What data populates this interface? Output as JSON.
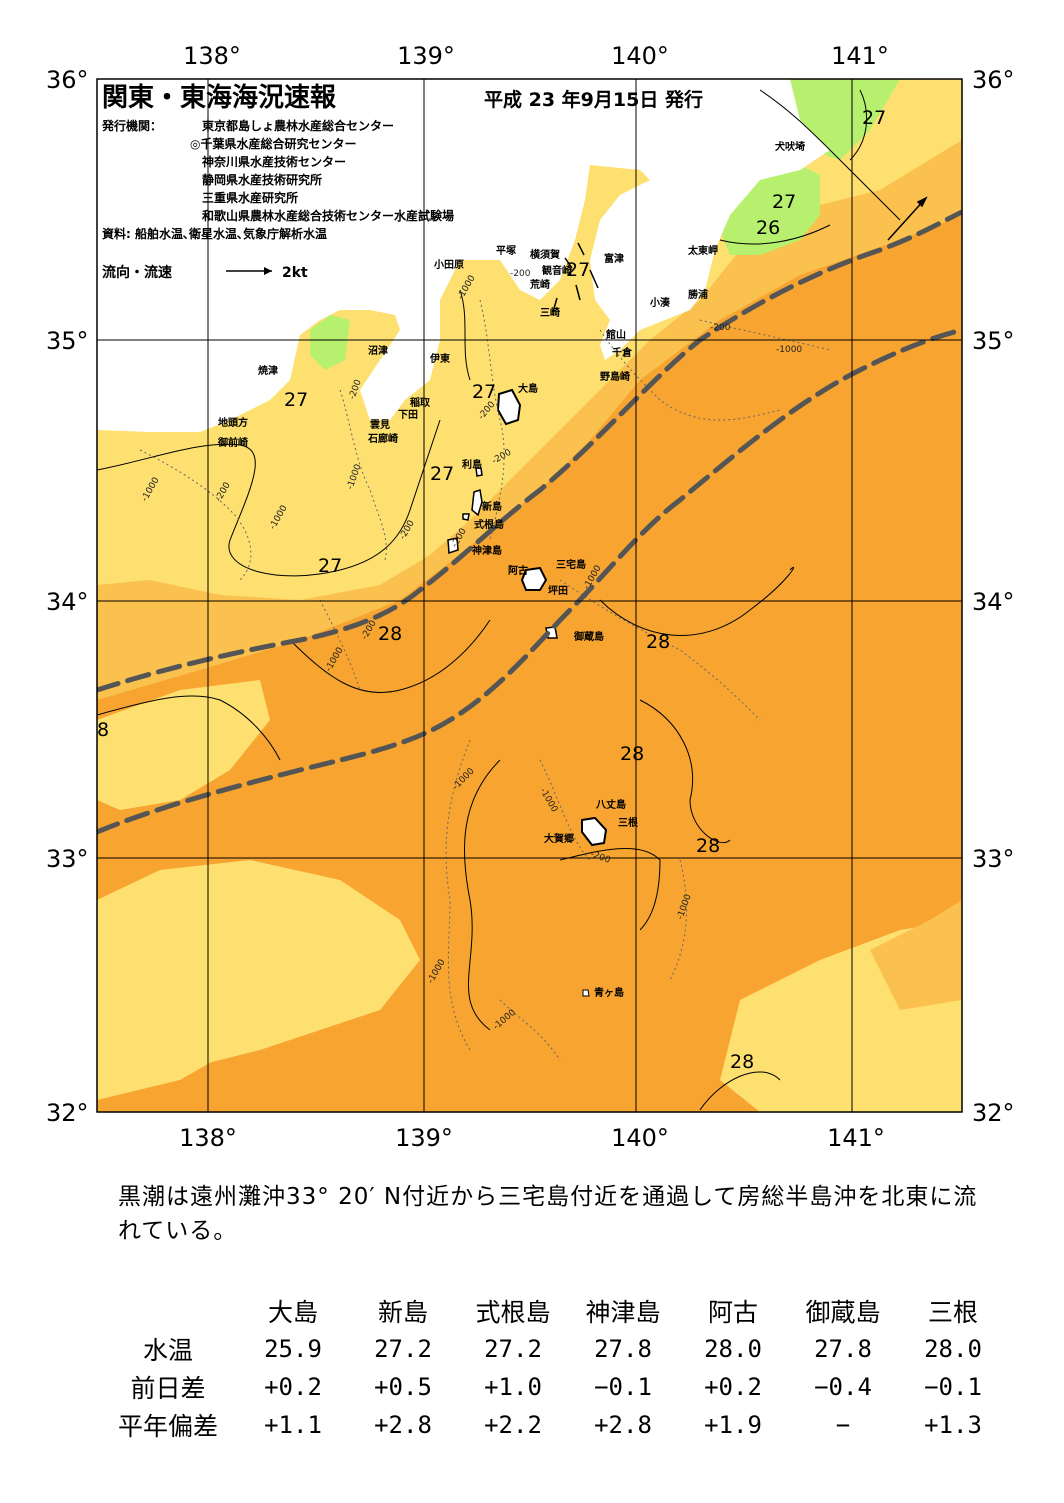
{
  "map": {
    "title": "関東・東海海況速報",
    "issue_date": "平成 23 年9月15日 発行",
    "agencies_label": "発行機関：",
    "agencies": [
      "東京都島しょ農林水産総合センター",
      "◎千葉県水産総合研究センター",
      "神奈川県水産技術センター",
      "静岡県水産技術研究所",
      "三重県水産研究所",
      "和歌山県農林水産総合技術センター水産試験場"
    ],
    "sources": "資料: 船舶水温､衛星水温､気象庁解析水温",
    "flow_legend": "流向・流速",
    "flow_scale": "2kt",
    "lon_labels_top": [
      "138°",
      "139°",
      "140°",
      "141°"
    ],
    "lon_labels_bottom": [
      "138°",
      "139°",
      "140°",
      "141°"
    ],
    "lat_labels_left": [
      "36°",
      "35°",
      "34°",
      "33°",
      "32°"
    ],
    "lat_labels_right": [
      "36°",
      "35°",
      "34°",
      "33°",
      "32°"
    ],
    "place_names": {
      "inubo": "犬吠埼",
      "taito": "太東岬",
      "katsuura": "勝浦",
      "kominato": "小湊",
      "tomitsu": "富津",
      "tateyama": "館山",
      "chikura": "千倉",
      "nojima": "野島崎",
      "yokosuka": "横須賀",
      "kannonzaki": "観音崎",
      "arasaki": "荒崎",
      "misaki": "三崎",
      "hiratsuka": "平塚",
      "odawara": "小田原",
      "numazu": "沼津",
      "ito": "伊東",
      "inatori": "稲取",
      "shimoda": "下田",
      "kumomi": "雲見",
      "irozaki": "石廊崎",
      "yaizu": "焼津",
      "jitokata": "地頭方",
      "omaezaki": "御前崎",
      "oshima": "大島",
      "toshima": "利島",
      "niijima": "新島",
      "shikinejima": "式根島",
      "kozushima": "神津島",
      "miyakejima": "三宅島",
      "ako": "阿古",
      "tsubota": "坪田",
      "mikurajima": "御蔵島",
      "hachijojima": "八丈島",
      "mitsune": "三根",
      "okago": "大賀郷",
      "aogashima": "青ヶ島"
    },
    "isotherm_labels": {
      "t1": "27",
      "t2": "27",
      "t3": "27",
      "t4": "26",
      "t5": "27",
      "t6": "27",
      "t7": "27",
      "t8": "27",
      "t9": "28",
      "t10": "28",
      "t11": "28",
      "t12": "28",
      "t13": "28",
      "t14": "8"
    },
    "depth_labels": {
      "d1": "-200",
      "d2": "-1000",
      "d3": "-200",
      "d4": "-1000",
      "d5": "-200",
      "d6": "-1000",
      "d7": "-200",
      "d8": "-200",
      "d9": "-1000",
      "d10": "-200",
      "d11": "-1000",
      "d12": "-200",
      "d13": "-1000",
      "d14": "-200",
      "d15": "-200",
      "d16": "-1000",
      "d17": "-1000",
      "d18": "-1000",
      "d19": "-1000",
      "d20": "-1000",
      "d21": "-1000",
      "d22": "-200"
    },
    "colors": {
      "land": "#ffffff",
      "sea_26": "#b6f06e",
      "sea_27": "#fde070",
      "sea_27b": "#fbc14e",
      "sea_28": "#f7a530",
      "kuroshio_axis": "#555555"
    }
  },
  "summary": "黒潮は遠州灘沖33° 20′ N付近から三宅島付近を通過して房総半島沖を北東に流れている。",
  "sst_table": {
    "columns": [
      "大島",
      "新島",
      "式根島",
      "神津島",
      "阿古",
      "御蔵島",
      "三根"
    ],
    "rows": [
      {
        "label": "水温",
        "values": [
          "25.9",
          "27.2",
          "27.2",
          "27.8",
          "28.0",
          "27.8",
          "28.0"
        ]
      },
      {
        "label": "前日差",
        "values": [
          "+0.2",
          "+0.5",
          "+1.0",
          "−0.1",
          "+0.2",
          "−0.4",
          "−0.1"
        ]
      },
      {
        "label": "平年偏差",
        "values": [
          "+1.1",
          "+2.8",
          "+2.2",
          "+2.8",
          "+1.9",
          "−",
          "+1.3"
        ]
      }
    ]
  }
}
